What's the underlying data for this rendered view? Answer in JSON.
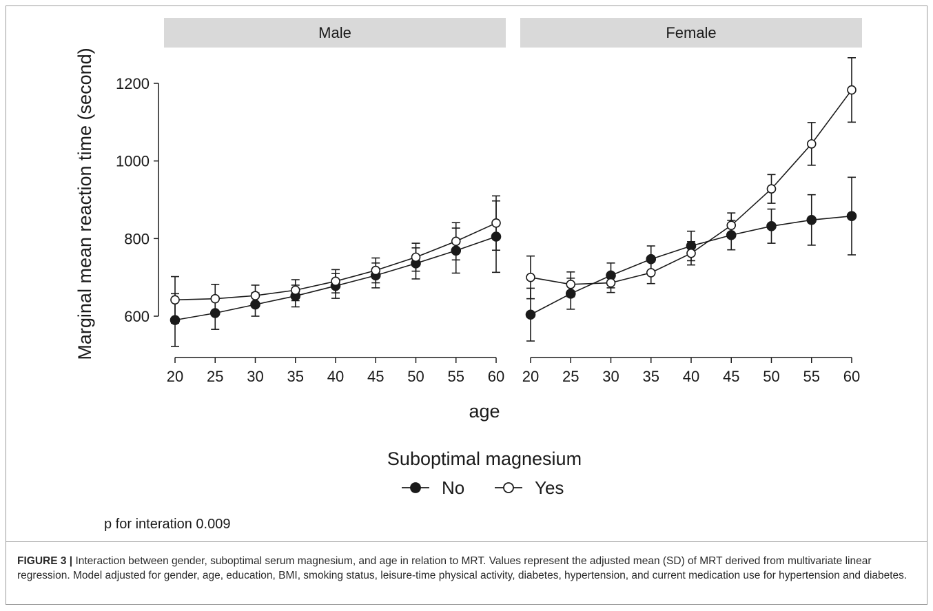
{
  "chart_data": {
    "type": "line",
    "panels": [
      "Male",
      "Female"
    ],
    "x": [
      20,
      25,
      30,
      35,
      40,
      45,
      50,
      55,
      60
    ],
    "xlabel": "age",
    "ylabel": "Marginal mean reaction time (second)",
    "xticks": [
      "20",
      "25",
      "30",
      "35",
      "40",
      "45",
      "50",
      "55",
      "60"
    ],
    "yticks": [
      "600",
      "800",
      "1000",
      "1200"
    ],
    "ytick_values": [
      600,
      800,
      1000,
      1200
    ],
    "xlim": [
      20,
      60
    ],
    "ylim": [
      500,
      1300
    ],
    "legend_title": "Suboptimal magnesium",
    "legend_placement": "bottom",
    "grid": false,
    "series": [
      {
        "name": "No",
        "marker": "filled-circle",
        "panel_values": {
          "Male": [
            590,
            608,
            630,
            652,
            678,
            705,
            736,
            769,
            805
          ],
          "Female": [
            604,
            658,
            705,
            747,
            781,
            809,
            832,
            848,
            858
          ]
        },
        "panel_sd": {
          "Male": [
            68,
            42,
            30,
            28,
            32,
            32,
            40,
            58,
            92
          ],
          "Female": [
            68,
            40,
            32,
            34,
            38,
            38,
            44,
            65,
            100
          ]
        }
      },
      {
        "name": "Yes",
        "marker": "open-circle",
        "panel_values": {
          "Male": [
            642,
            645,
            653,
            667,
            690,
            718,
            752,
            793,
            840
          ],
          "Female": [
            700,
            682,
            686,
            712,
            762,
            834,
            928,
            1044,
            1183
          ]
        },
        "panel_sd": {
          "Male": [
            60,
            37,
            27,
            27,
            30,
            32,
            36,
            48,
            70
          ],
          "Female": [
            55,
            32,
            25,
            28,
            30,
            32,
            37,
            55,
            83
          ]
        }
      }
    ],
    "annotation": "p for interation 0.009"
  },
  "caption": {
    "label": "FIGURE 3 |",
    "text": "Interaction between gender, suboptimal serum magnesium, and age in relation to MRT. Values represent the adjusted mean (SD) of MRT derived from multivariate linear regression. Model adjusted for gender, age, education, BMI, smoking status, leisure-time physical activity, diabetes, hypertension, and current medication use for hypertension and diabetes."
  },
  "colors": {
    "strip_fill": "#d9d9d9",
    "ink": "#1a1a1a"
  }
}
